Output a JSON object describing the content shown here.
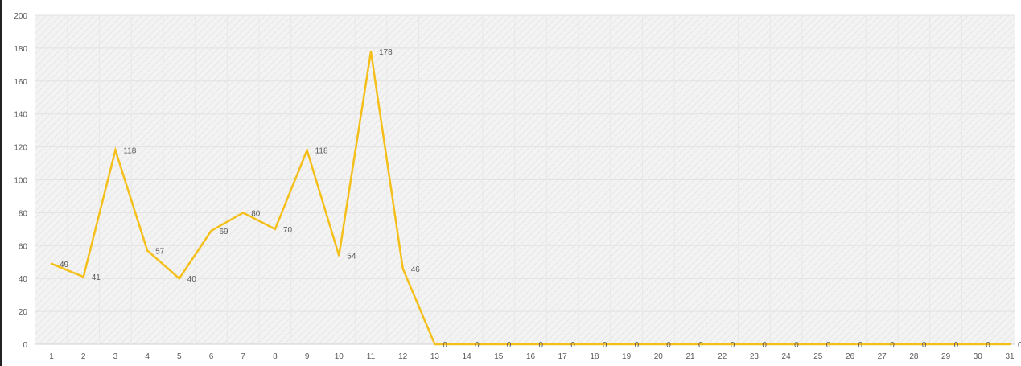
{
  "chart_data": {
    "type": "line",
    "title": "",
    "xlabel": "",
    "ylabel": "",
    "ylim": [
      0,
      200
    ],
    "y_ticks": [
      0,
      20,
      40,
      60,
      80,
      100,
      120,
      140,
      160,
      180,
      200
    ],
    "categories": [
      "1",
      "2",
      "3",
      "4",
      "5",
      "6",
      "7",
      "8",
      "9",
      "10",
      "11",
      "12",
      "13",
      "14",
      "15",
      "16",
      "17",
      "18",
      "19",
      "20",
      "21",
      "22",
      "23",
      "24",
      "25",
      "26",
      "27",
      "28",
      "29",
      "30",
      "31"
    ],
    "series": [
      {
        "values": [
          49,
          41,
          118,
          57,
          40,
          69,
          80,
          70,
          118,
          54,
          178,
          46,
          0,
          0,
          0,
          0,
          0,
          0,
          0,
          0,
          0,
          0,
          0,
          0,
          0,
          0,
          0,
          0,
          0,
          0,
          0
        ],
        "labels": [
          "49",
          "41",
          "118",
          "57",
          "40",
          "69",
          "80",
          "70",
          "118",
          "54",
          "178",
          "46",
          "0",
          "0",
          "0",
          "0",
          "0",
          "0",
          "0",
          "0",
          "0",
          "0",
          "0",
          "0",
          "0",
          "0",
          "0",
          "0",
          "0",
          "0",
          "0"
        ],
        "color": "#f5bf1a"
      }
    ],
    "grid": true,
    "legend": "none",
    "plot_background": "#f2f2f2",
    "gridline_color": "#e2e2e2"
  }
}
